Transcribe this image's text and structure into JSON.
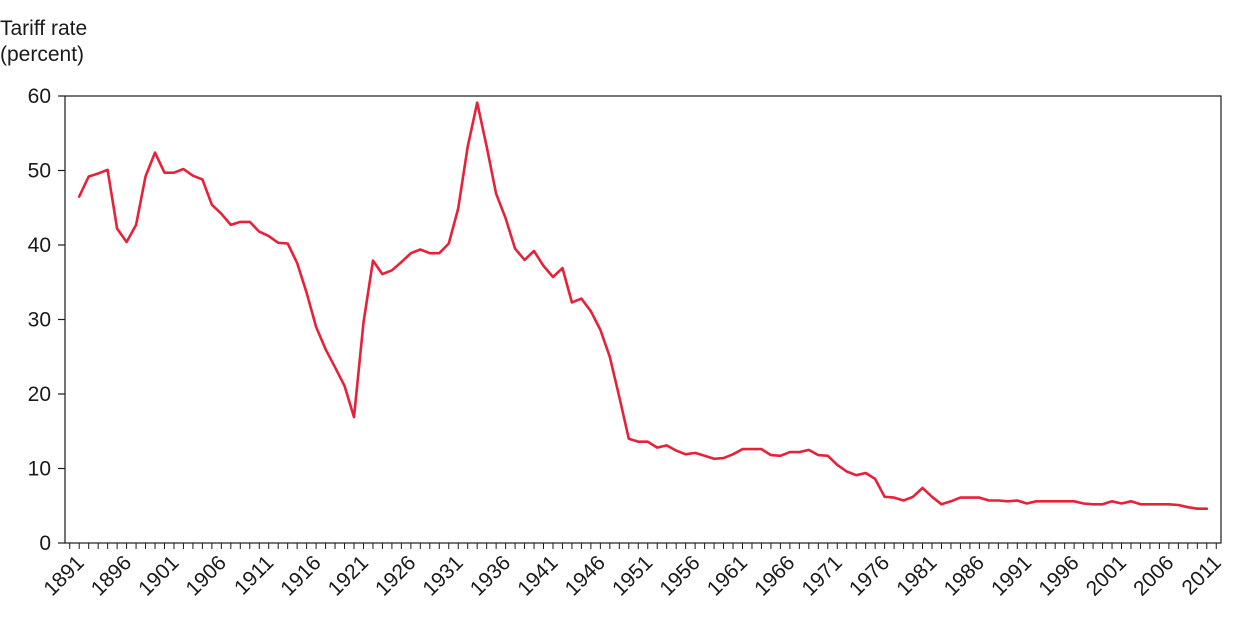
{
  "chart_data": {
    "type": "line",
    "title": "",
    "ylabel_lines": [
      "Tariff rate",
      "(percent)"
    ],
    "xlabel": "",
    "ylim": [
      0,
      60
    ],
    "xlim": [
      1889.5,
      2011.5
    ],
    "yticks": [
      0,
      10,
      20,
      30,
      40,
      50,
      60
    ],
    "xticks": [
      1891,
      1896,
      1901,
      1906,
      1911,
      1916,
      1921,
      1926,
      1931,
      1936,
      1941,
      1946,
      1951,
      1956,
      1961,
      1966,
      1971,
      1976,
      1981,
      1986,
      1991,
      1996,
      2001,
      2006,
      2011
    ],
    "grid": false,
    "line_color": "#e5223a",
    "series": [
      {
        "x": [
          1891,
          1892,
          1893,
          1894,
          1895,
          1896,
          1897,
          1898,
          1899,
          1900,
          1901,
          1902,
          1903,
          1904,
          1905,
          1906,
          1907,
          1908,
          1909,
          1910,
          1911,
          1912,
          1913,
          1914,
          1915,
          1916,
          1917,
          1918,
          1919,
          1920,
          1921,
          1922,
          1923,
          1924,
          1925,
          1926,
          1927,
          1928,
          1929,
          1930,
          1931,
          1932,
          1933,
          1934,
          1935,
          1936,
          1937,
          1938,
          1939,
          1940,
          1941,
          1942,
          1943,
          1944,
          1945,
          1946,
          1947,
          1948,
          1949,
          1950,
          1951,
          1952,
          1953,
          1954,
          1955,
          1956,
          1957,
          1958,
          1959,
          1960,
          1961,
          1962,
          1963,
          1964,
          1965,
          1966,
          1967,
          1968,
          1969,
          1970,
          1971,
          1972,
          1973,
          1974,
          1975,
          1976,
          1977,
          1978,
          1979,
          1980,
          1981,
          1982,
          1983,
          1984,
          1985,
          1986,
          1987,
          1988,
          1989,
          1990,
          1991,
          1992,
          1993,
          1994,
          1995,
          1996,
          1997,
          1998,
          1999,
          2000,
          2001,
          2002,
          2003,
          2004,
          2005,
          2006,
          2007,
          2008,
          2009,
          2010
        ],
        "values": [
          46.5,
          49.2,
          49.6,
          50.1,
          42.2,
          40.4,
          42.7,
          49.2,
          52.4,
          49.7,
          49.7,
          50.2,
          49.3,
          48.8,
          45.4,
          44.2,
          42.7,
          43.1,
          43.1,
          41.8,
          41.2,
          40.3,
          40.2,
          37.6,
          33.6,
          29.0,
          26.0,
          23.6,
          21.1,
          16.9,
          29.6,
          37.9,
          36.1,
          36.6,
          37.7,
          38.9,
          39.4,
          38.9,
          38.9,
          40.2,
          44.9,
          53.2,
          59.1,
          53.2,
          46.9,
          43.6,
          39.5,
          38.0,
          39.2,
          37.2,
          35.7,
          36.9,
          32.3,
          32.8,
          31.1,
          28.6,
          25.0,
          19.6,
          14.0,
          13.6,
          13.6,
          12.8,
          13.1,
          12.4,
          11.9,
          12.1,
          11.7,
          11.3,
          11.4,
          11.9,
          12.6,
          12.6,
          12.6,
          11.8,
          11.7,
          12.2,
          12.2,
          12.5,
          11.8,
          11.7,
          10.5,
          9.6,
          9.1,
          9.4,
          8.6,
          6.2,
          6.1,
          5.7,
          6.2,
          7.4,
          6.2,
          5.2,
          5.6,
          6.1,
          6.1,
          6.1,
          5.7,
          5.7,
          5.6,
          5.7,
          5.3,
          5.6,
          5.6,
          5.6,
          5.6,
          5.6,
          5.3,
          5.2,
          5.2,
          5.6,
          5.3,
          5.6,
          5.2,
          5.2,
          5.2,
          5.2,
          5.1,
          4.8,
          4.6,
          4.6
        ]
      }
    ]
  }
}
